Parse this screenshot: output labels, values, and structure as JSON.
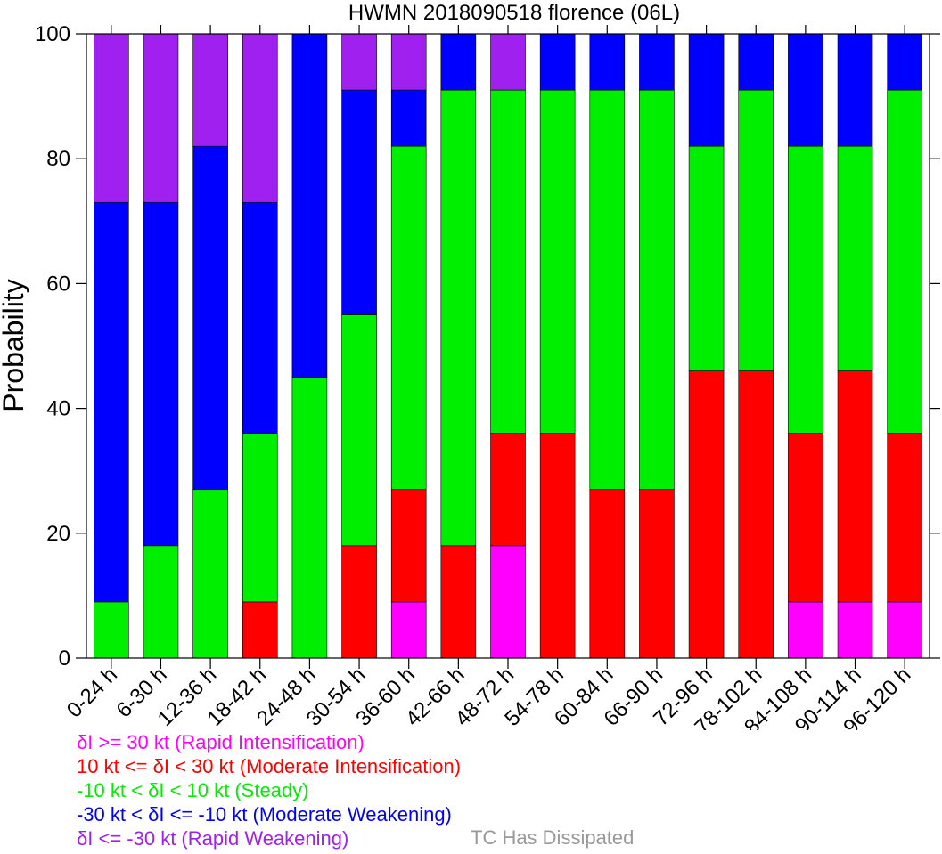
{
  "chart_data": {
    "type": "bar",
    "stacked": true,
    "title": "HWMN 2018090518 florence (06L)",
    "ylabel": "Probability",
    "ylim": [
      0,
      100
    ],
    "yticks": [
      0,
      20,
      40,
      60,
      80,
      100
    ],
    "categories": [
      "0-24 h",
      "6-30 h",
      "12-36 h",
      "18-42 h",
      "24-48 h",
      "30-54 h",
      "36-60 h",
      "42-66 h",
      "48-72 h",
      "54-78 h",
      "60-84 h",
      "66-90 h",
      "72-96 h",
      "78-102 h",
      "84-108 h",
      "90-114 h",
      "96-120 h"
    ],
    "series": [
      {
        "key": "ri",
        "color": "#ff00ff",
        "values": [
          0,
          0,
          0,
          0,
          0,
          0,
          9,
          0,
          18,
          0,
          0,
          0,
          0,
          0,
          9,
          9,
          9
        ]
      },
      {
        "key": "mi",
        "color": "#ff0000",
        "values": [
          0,
          0,
          0,
          9,
          0,
          18,
          18,
          18,
          18,
          36,
          27,
          27,
          46,
          46,
          27,
          37,
          27
        ]
      },
      {
        "key": "st",
        "color": "#00ee00",
        "values": [
          9,
          18,
          27,
          27,
          45,
          37,
          55,
          73,
          55,
          55,
          64,
          64,
          36,
          45,
          46,
          36,
          55
        ]
      },
      {
        "key": "mw",
        "color": "#0000ff",
        "values": [
          64,
          55,
          55,
          37,
          55,
          36,
          9,
          9,
          0,
          9,
          9,
          9,
          18,
          9,
          18,
          18,
          9
        ]
      },
      {
        "key": "rw",
        "color": "#a020f0",
        "values": [
          27,
          27,
          18,
          27,
          0,
          9,
          9,
          0,
          9,
          0,
          0,
          0,
          0,
          0,
          0,
          0,
          0
        ]
      }
    ]
  },
  "legend": {
    "ri": {
      "text": "δI >= 30 kt (Rapid Intensification)",
      "color": "#ff00ff"
    },
    "mi": {
      "text": "10 kt <= δI < 30 kt (Moderate Intensification)",
      "color": "#ff0000"
    },
    "st": {
      "text": "-10 kt < δI < 10 kt (Steady)",
      "color": "#00ee00"
    },
    "mw": {
      "text": "-30 kt < δI <= -10 kt (Moderate Weakening)",
      "color": "#0000ff"
    },
    "rw": {
      "text": "δI <= -30 kt (Rapid Weakening)",
      "color": "#a020f0"
    },
    "dissipated": {
      "text": "TC Has Dissipated",
      "color": "#999999"
    }
  }
}
